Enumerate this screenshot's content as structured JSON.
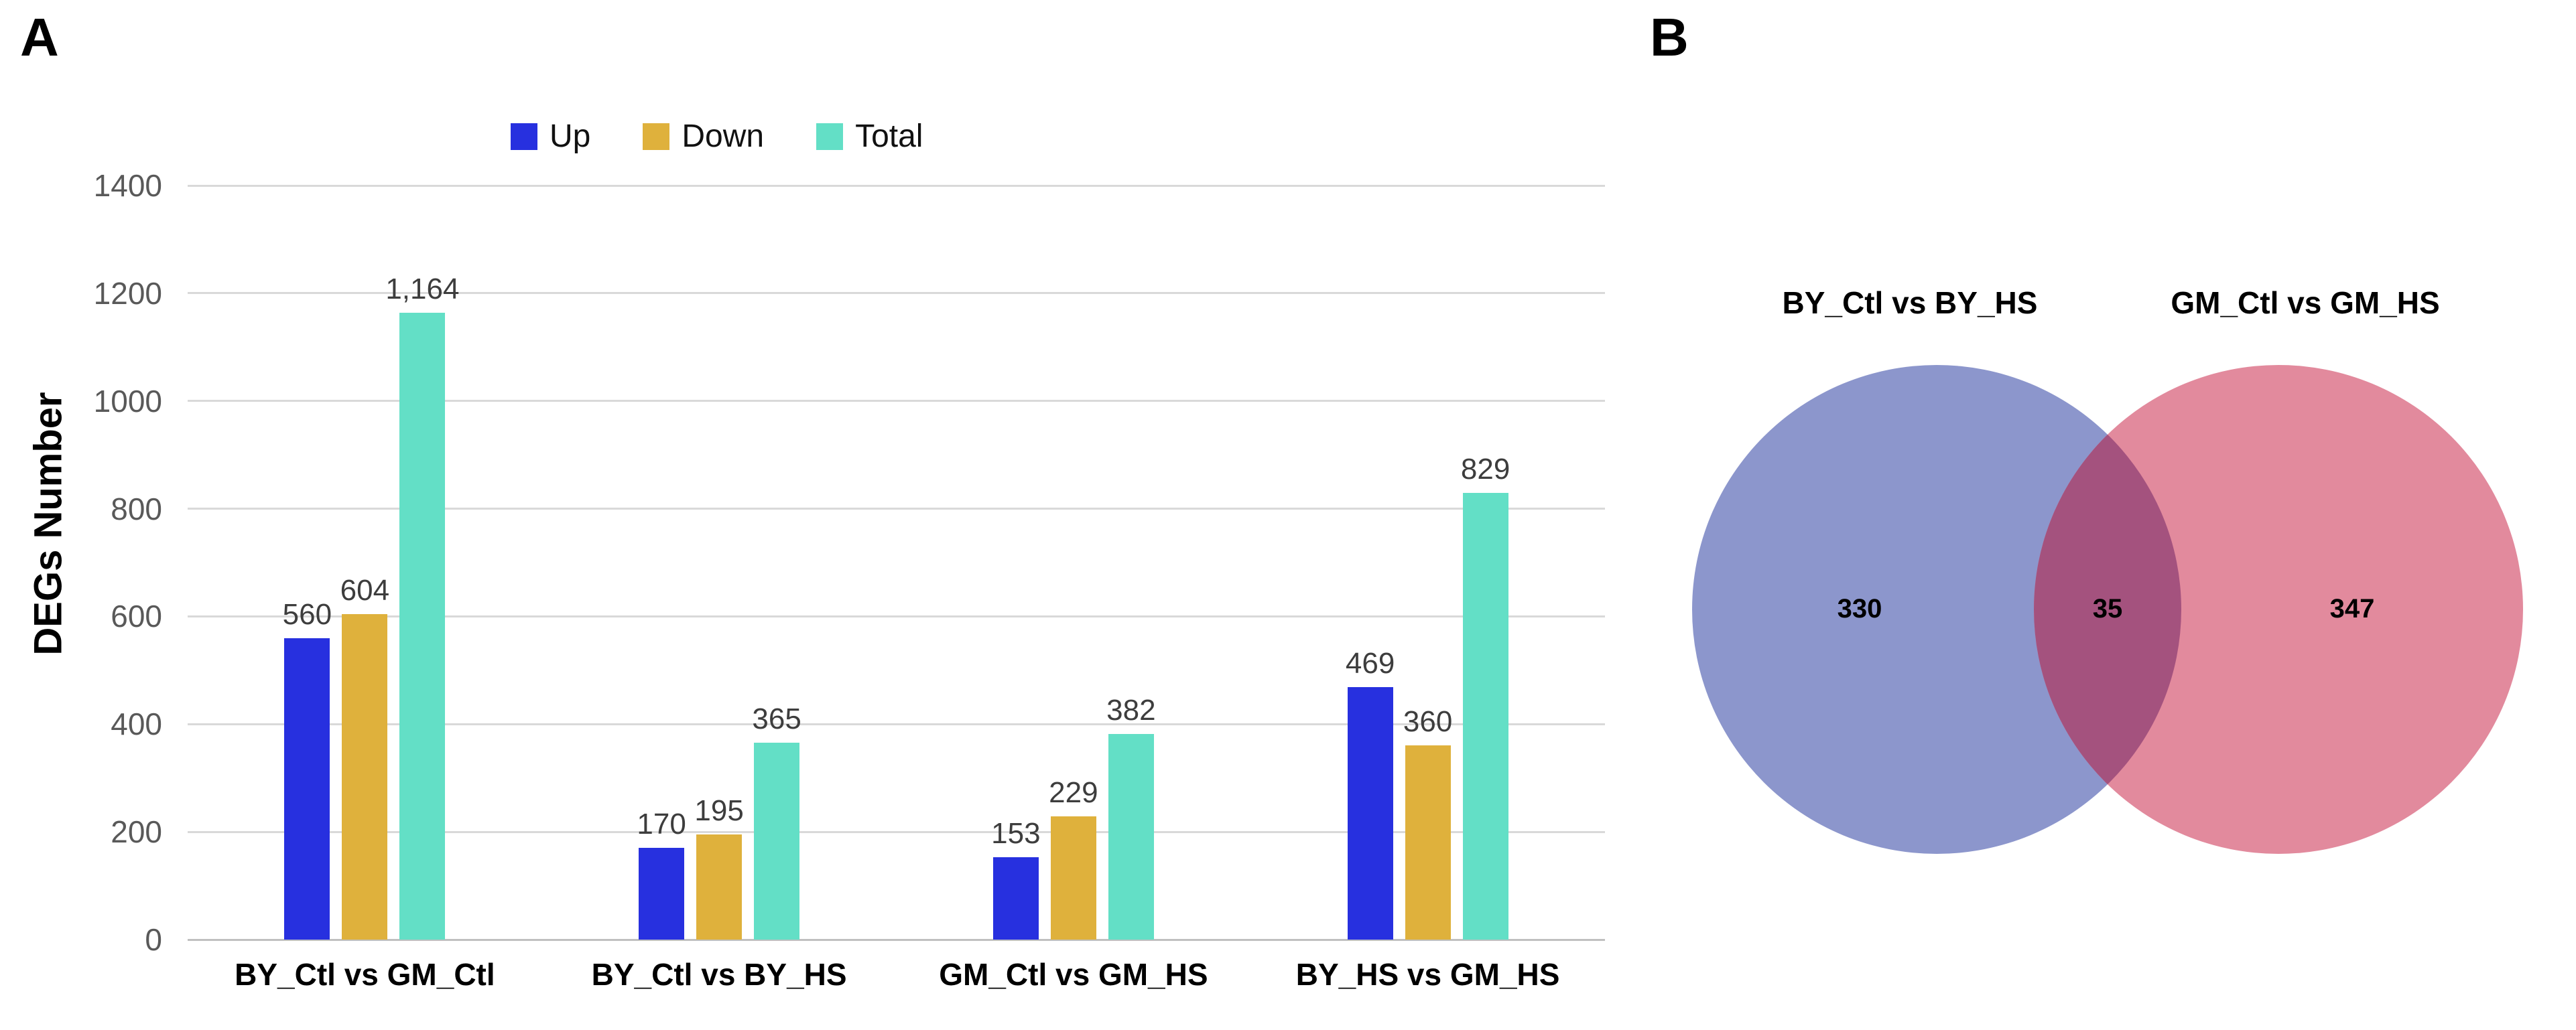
{
  "panel_a": {
    "letter": "A"
  },
  "panel_b": {
    "letter": "B"
  },
  "chart_data": [
    {
      "type": "bar",
      "categories": [
        "BY_Ctl vs GM_Ctl",
        "BY_Ctl vs BY_HS",
        "GM_Ctl vs GM_HS",
        "BY_HS vs GM_HS"
      ],
      "series": [
        {
          "name": "Up",
          "color": "#2730DF",
          "values": [
            560,
            170,
            153,
            469
          ],
          "labels": [
            "560",
            "170",
            "153",
            "469"
          ]
        },
        {
          "name": "Down",
          "color": "#DFB13C",
          "values": [
            604,
            195,
            229,
            360
          ],
          "labels": [
            "604",
            "195",
            "229",
            "360"
          ]
        },
        {
          "name": "Total",
          "color": "#63DFC6",
          "values": [
            1164,
            365,
            382,
            829
          ],
          "labels": [
            "1,164",
            "365",
            "382",
            "829"
          ]
        }
      ],
      "xlabel": "",
      "ylabel": "DEGs Number",
      "ylim": [
        0,
        1400
      ],
      "yticks": [
        0,
        200,
        400,
        600,
        800,
        1000,
        1200,
        1400
      ],
      "ytick_labels": [
        "0",
        "200",
        "400",
        "600",
        "800",
        "1000",
        "1200",
        "1400"
      ],
      "grid": true,
      "legend_position": "top",
      "value_labels_shown": true
    },
    {
      "type": "venn",
      "sets": [
        {
          "label": "BY_Ctl vs BY_HS",
          "only_value": "330",
          "only_size": 330,
          "color": "#8C96CC"
        },
        {
          "label": "GM_Ctl vs GM_HS",
          "only_value": "347",
          "only_size": 347,
          "color": "#E28A9D"
        }
      ],
      "overlap": {
        "value": "35",
        "size": 35,
        "color": "#A4527E"
      }
    }
  ],
  "colors": {
    "up": "#2730DF",
    "down": "#DFB13C",
    "total": "#63DFC6",
    "venn_left": "#8C96CC",
    "venn_right": "#E28A9D",
    "venn_overlap": "#A4527E",
    "gridline": "#d9d9d9",
    "tick_text": "#595959",
    "value_text": "#3d3d3d"
  }
}
